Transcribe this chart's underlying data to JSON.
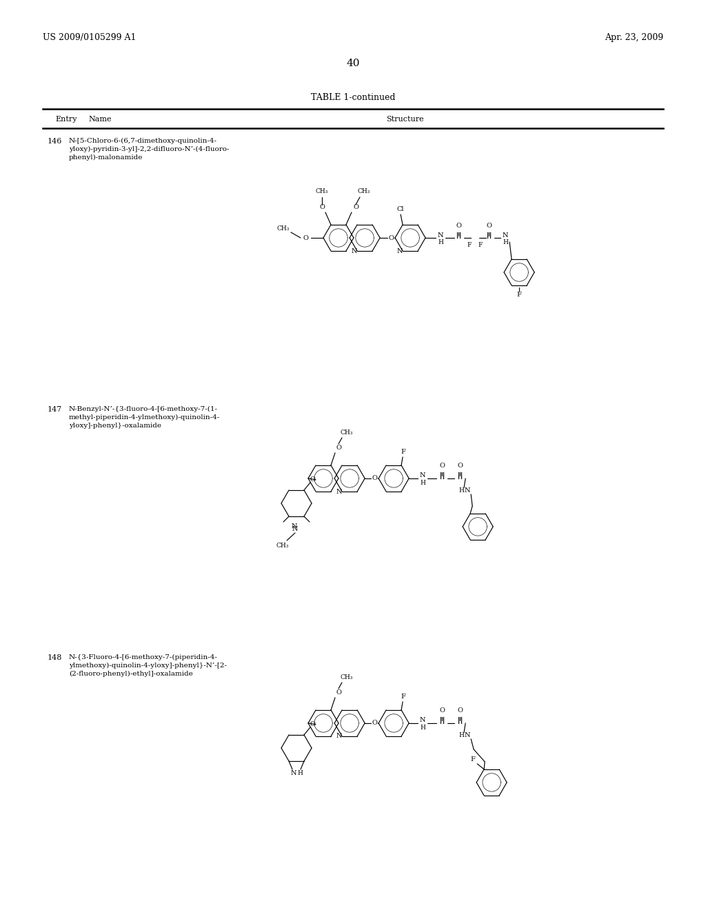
{
  "bg_color": "#ffffff",
  "page_number": "40",
  "top_left_text": "US 2009/0105299 A1",
  "top_right_text": "Apr. 23, 2009",
  "table_title": "TABLE 1-continued",
  "entries": [
    {
      "number": "146",
      "name_lines": [
        "N-[5-Chloro-6-(6,7-dimethoxy-quinolin-4-",
        "yloxy)-pyridin-3-yl]-2,2-difluoro-N’-(4-fluoro-",
        "phenyl)-malonamide"
      ]
    },
    {
      "number": "147",
      "name_lines": [
        "N-Benzyl-N’-{3-fluoro-4-[6-methoxy-7-(1-",
        "methyl-piperidin-4-ylmethoxy)-quinolin-4-",
        "yloxy]-phenyl}-oxalamide"
      ]
    },
    {
      "number": "148",
      "name_lines": [
        "N-{3-Fluoro-4-[6-methoxy-7-(piperidin-4-",
        "ylmethoxy)-quinolin-4-yloxy]-phenyl}-N’-[2-",
        "(2-fluoro-phenyl)-ethyl]-oxalamide"
      ]
    }
  ]
}
